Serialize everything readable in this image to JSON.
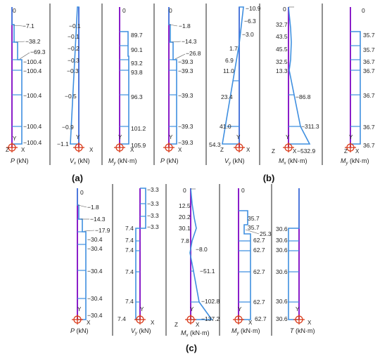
{
  "colors": {
    "member": "#8a1ec9",
    "diagram": "#3f8fe0",
    "axis": "#2b2b2b",
    "support": "#d93a1a",
    "divider": "#222222"
  },
  "captions": [
    "(a)",
    "(b)",
    "(c)"
  ],
  "icons": {
    "support": "support-icon",
    "axes": "axes-triad-icon"
  },
  "panels": [
    {
      "id": "a1",
      "label": "P",
      "unit": "(kN)",
      "sub": "",
      "values": [
        "0",
        "−7.1",
        "−38.2",
        "−69.3",
        "−100.4",
        "−100.4",
        "−100.4",
        "−100.4",
        "−100.4"
      ],
      "axes": [
        "Y",
        "Z",
        "X"
      ]
    },
    {
      "id": "a2",
      "label": "V",
      "sub": "x",
      "unit": "(kN)",
      "values": [
        "−0.1",
        "−0.1",
        "−0.2",
        "−0.3",
        "−0.3",
        "−0.5",
        "−0.9",
        "−1.1"
      ],
      "axes": [
        "Y",
        "X"
      ]
    },
    {
      "id": "a3",
      "label": "M",
      "sub": "y",
      "unit": "(kN·m)",
      "values": [
        "0",
        "89.7",
        "90.1",
        "93.2",
        "93.8",
        "96.3",
        "101.2",
        "105.9"
      ],
      "axes": [
        "Y",
        "X"
      ]
    },
    {
      "id": "b1",
      "label": "P",
      "sub": "",
      "unit": "(kN)",
      "values": [
        "0",
        "−1.8",
        "−14.3",
        "−26.8",
        "−39.3",
        "−39.3",
        "−39.3",
        "−39.3",
        "−39.3"
      ],
      "axes": [
        "Y",
        "X"
      ]
    },
    {
      "id": "b2",
      "label": "V",
      "sub": "y",
      "unit": "(kN)",
      "values": [
        "−10.9",
        "−6.3",
        "−3.0",
        "1.7",
        "6.9",
        "11.0",
        "23.4",
        "41.0",
        "54.3"
      ],
      "axes": [
        "Y",
        "Z",
        "X"
      ]
    },
    {
      "id": "b3",
      "label": "M",
      "sub": "x",
      "unit": "(kN·m)",
      "values": [
        "0",
        "32.7",
        "43.5",
        "45.5",
        "32.5",
        "13.3",
        "−86.8",
        "−311.3",
        "−532.9"
      ],
      "axes": [
        "Y",
        "Z",
        "X"
      ]
    },
    {
      "id": "b4",
      "label": "M",
      "sub": "y",
      "unit": "(kN·m)",
      "values": [
        "0",
        "35.7",
        "35.7",
        "36.7",
        "36.7",
        "36.7",
        "36.7",
        "36.7",
        "36.7"
      ],
      "axes": [
        "Y",
        "Z",
        "X"
      ]
    },
    {
      "id": "c1",
      "label": "P",
      "sub": "",
      "unit": "(kN)",
      "values": [
        "0",
        "−1.8",
        "−14.3",
        "−17.9",
        "−30.4",
        "−30.4",
        "−30.4",
        "−30.4",
        "−30.4"
      ],
      "axes": [
        "Y",
        "X"
      ]
    },
    {
      "id": "c2",
      "label": "V",
      "sub": "y",
      "unit": "(kN)",
      "values": [
        "−3.3",
        "−3.3",
        "−3.3",
        "−3.3",
        "7.4",
        "7.4",
        "7.4",
        "7.4",
        "7.4",
        "7.4"
      ],
      "axes": [
        "Y",
        "X"
      ]
    },
    {
      "id": "c3",
      "label": "M",
      "sub": "x",
      "unit": "(kN·m)",
      "values": [
        "0",
        "12.5",
        "20.2",
        "30.1",
        "7.8",
        "−8.0",
        "−51.1",
        "−102.8",
        "−137.2"
      ],
      "axes": [
        "Y",
        "Z",
        "X"
      ]
    },
    {
      "id": "c4",
      "label": "M",
      "sub": "y",
      "unit": "(kN·m)",
      "values": [
        "0",
        "35.7",
        "35.7",
        "25.3",
        "62.7",
        "62.7",
        "62.7",
        "62.7",
        "62.7"
      ],
      "axes": [
        "Y",
        "X"
      ]
    },
    {
      "id": "c5",
      "label": "T",
      "sub": "",
      "unit": "(kN·m)",
      "values": [
        "30.6",
        "30.6",
        "30.6",
        "30.6",
        "30.6",
        "30.6",
        "30.6"
      ],
      "axes": [
        "Y",
        "X"
      ]
    }
  ]
}
